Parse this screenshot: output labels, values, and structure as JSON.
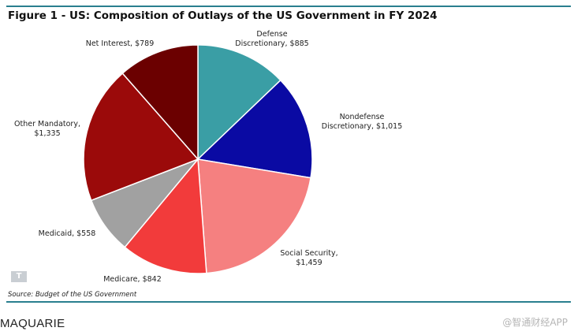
{
  "chart_data": {
    "type": "pie",
    "title": "Figure 1 - US: Composition of Outlays of the US Government in FY 2024",
    "start": "12 o'clock, clockwise",
    "categories": [
      "Defense Discretionary",
      "Nondefense Discretionary",
      "Social Security",
      "Medicare",
      "Medicaid",
      "Other Mandatory",
      "Net Interest"
    ],
    "values": [
      885,
      1015,
      1459,
      842,
      558,
      1335,
      789
    ],
    "labels": [
      [
        "Defense",
        "Discretionary, $885"
      ],
      [
        "Nondefense",
        "Discretionary, $1,015"
      ],
      [
        "Social Security,",
        "$1,459"
      ],
      [
        "Medicare, $842"
      ],
      [
        "Medicaid, $558"
      ],
      [
        "Other Mandatory,",
        "$1,335"
      ],
      [
        "Net Interest, $789"
      ]
    ],
    "colors": [
      "#3a9ea5",
      "#0a0aa3",
      "#f58080",
      "#f23b3b",
      "#a1a1a1",
      "#9b0a0a",
      "#6b0000"
    ]
  },
  "logo_text": "T",
  "source": "Source: Budget of the US Government",
  "brand": "MAQUARIE",
  "watermark": "@智通财经APP"
}
